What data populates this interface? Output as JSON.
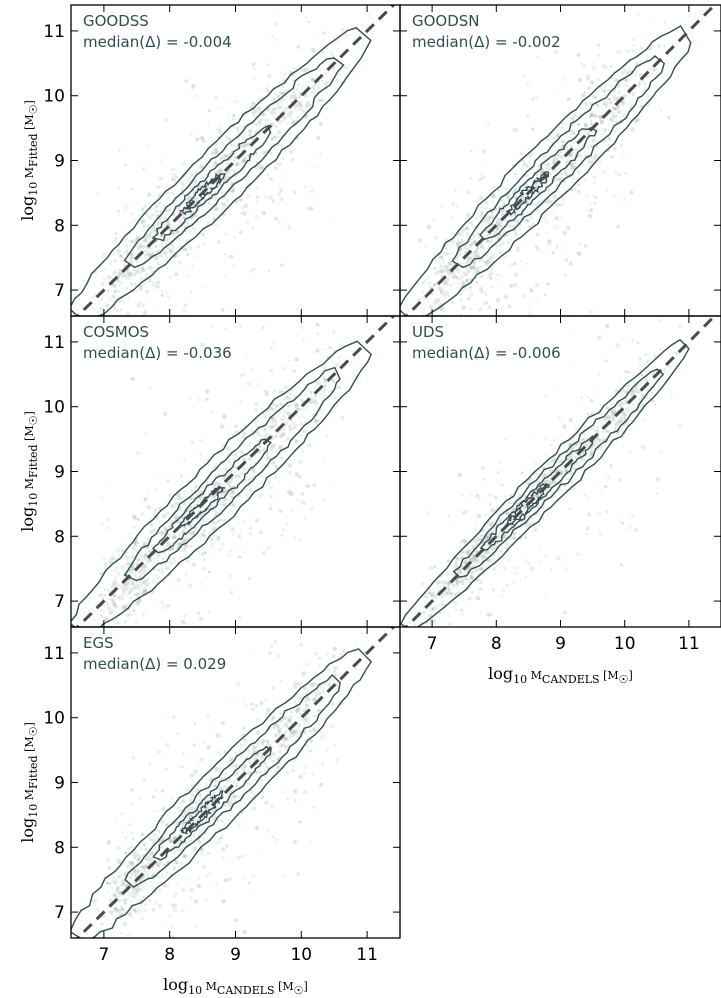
{
  "colors": {
    "scatter": "#9fb0ac",
    "contour": "#2f4f4f",
    "one_to_one": "#4a4a4a",
    "annotation": "#2f4f4f",
    "frame": "#000000"
  },
  "chart_data": [
    {
      "type": "scatter",
      "field": "GOODSS",
      "annotation": "median(Δ) = -0.004",
      "median_delta": -0.004,
      "xlabel": "",
      "ylabel": "log10 M_Fitted [M_☉]",
      "xlim": [
        6.5,
        11.5
      ],
      "ylim": [
        6.6,
        11.4
      ],
      "xticks": [],
      "yticks": [
        7,
        8,
        9,
        10,
        11
      ],
      "one_to_one_line": true,
      "contour_levels": 4,
      "spread": 0.3,
      "outlier_fraction": 0.35
    },
    {
      "type": "scatter",
      "field": "GOODSN",
      "annotation": "median(Δ) = -0.002",
      "median_delta": -0.002,
      "xlabel": "",
      "ylabel": "",
      "xlim": [
        6.5,
        11.5
      ],
      "ylim": [
        6.6,
        11.4
      ],
      "xticks": [],
      "yticks": [],
      "one_to_one_line": true,
      "contour_levels": 4,
      "spread": 0.3,
      "outlier_fraction": 0.35
    },
    {
      "type": "scatter",
      "field": "COSMOS",
      "annotation": "median(Δ) = -0.036",
      "median_delta": -0.036,
      "xlabel": "",
      "ylabel": "log10 M_Fitted [M_☉]",
      "xlim": [
        6.5,
        11.5
      ],
      "ylim": [
        6.6,
        11.4
      ],
      "xticks": [],
      "yticks": [
        7,
        8,
        9,
        10,
        11
      ],
      "one_to_one_line": true,
      "contour_levels": 4,
      "spread": 0.3,
      "outlier_fraction": 0.35
    },
    {
      "type": "scatter",
      "field": "UDS",
      "annotation": "median(Δ) = -0.006",
      "median_delta": -0.006,
      "xlabel": "log10 M_CANDELS [M_☉]",
      "ylabel": "",
      "xlim": [
        6.5,
        11.5
      ],
      "ylim": [
        6.6,
        11.4
      ],
      "xticks": [
        7,
        8,
        9,
        10,
        11
      ],
      "yticks": [],
      "one_to_one_line": true,
      "contour_levels": 4,
      "spread": 0.2,
      "outlier_fraction": 0.2
    },
    {
      "type": "scatter",
      "field": "EGS",
      "annotation": "median(Δ) = 0.029",
      "median_delta": 0.029,
      "xlabel": "log10 M_CANDELS [M_☉]",
      "ylabel": "log10 M_Fitted [M_☉]",
      "xlim": [
        6.5,
        11.5
      ],
      "ylim": [
        6.6,
        11.4
      ],
      "xticks": [
        7,
        8,
        9,
        10,
        11
      ],
      "yticks": [
        7,
        8,
        9,
        10,
        11
      ],
      "one_to_one_line": true,
      "contour_levels": 4,
      "spread": 0.28,
      "outlier_fraction": 0.3
    }
  ]
}
